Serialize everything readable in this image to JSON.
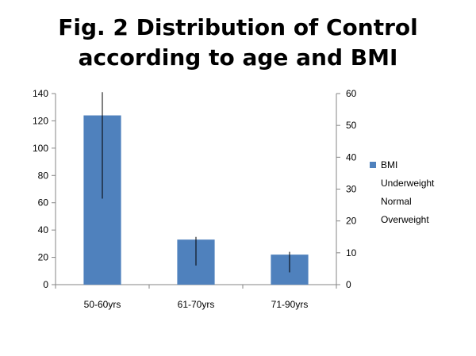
{
  "chart_data": {
    "type": "bar",
    "title_lines": [
      "Fig. 2 Distribution of Control",
      "according to age and BMI"
    ],
    "categories": [
      "50-60yrs",
      "61-70yrs",
      "71-90yrs"
    ],
    "series": [
      {
        "name": "BMI",
        "values": [
          124,
          33,
          22
        ],
        "color": "#4f81bd"
      }
    ],
    "error_bars": [
      {
        "low": 63,
        "high": 141
      },
      {
        "low": 14,
        "high": 35
      },
      {
        "low": 9,
        "high": 24
      }
    ],
    "legend_extra": [
      "Underweight",
      "Normal",
      "Overweight"
    ],
    "ylim_left": [
      0,
      140
    ],
    "yticks_left": [
      0,
      20,
      40,
      60,
      80,
      100,
      120,
      140
    ],
    "ylim_right": [
      0,
      60
    ],
    "yticks_right": [
      0,
      10,
      20,
      30,
      40,
      50,
      60
    ],
    "grid": false,
    "legend_position": "right"
  }
}
